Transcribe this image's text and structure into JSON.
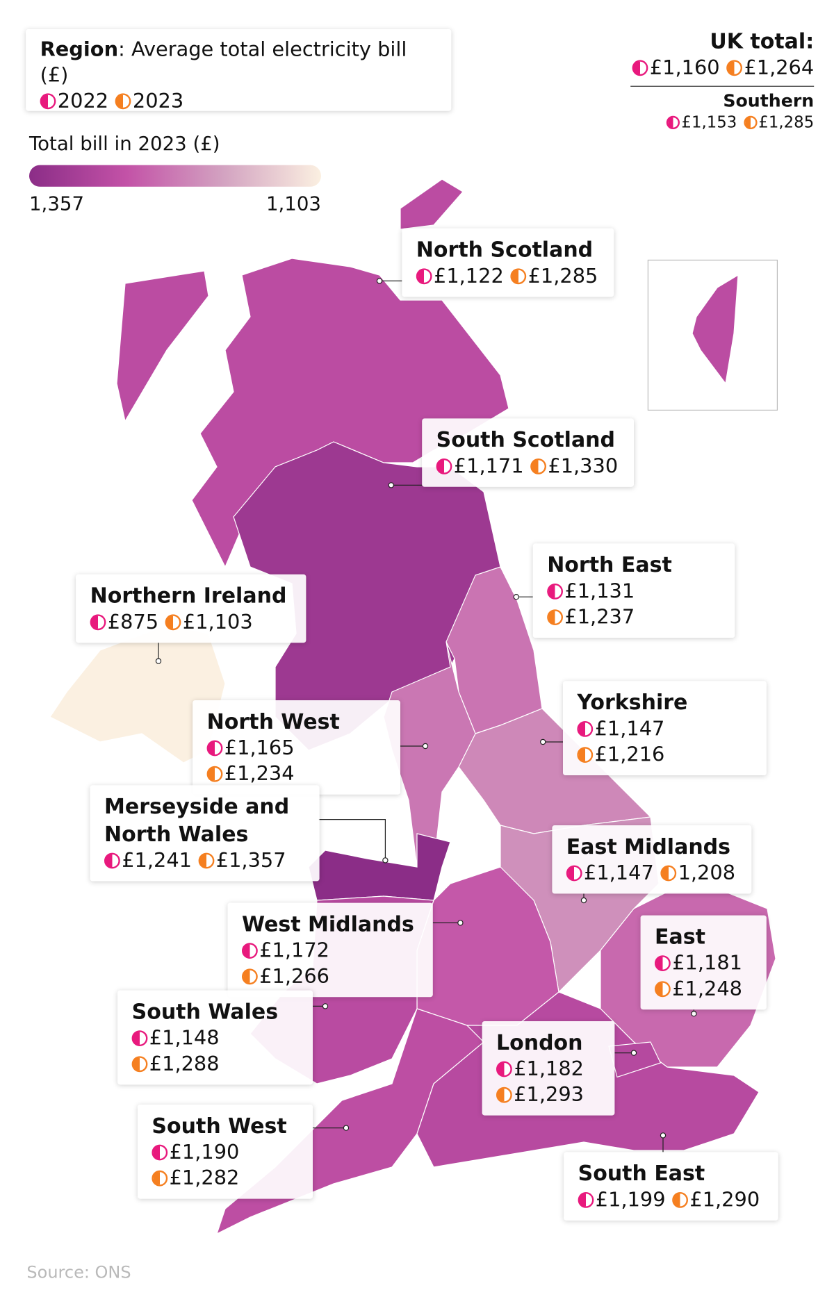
{
  "legend": {
    "title_bold": "Region",
    "title_rest": ": Average total electricity bill (£)",
    "series": [
      {
        "name": "2022",
        "color": "#e8197d"
      },
      {
        "name": "2023",
        "color": "#f57f20"
      }
    ]
  },
  "color_scale": {
    "title": "Total bill in 2023 (£)",
    "colors": [
      "#8b2d87",
      "#c352a7",
      "#d3a3c1",
      "#fbf0e1"
    ],
    "range": [
      {
        "value": 1357,
        "label": "1,357"
      },
      {
        "value": 1103,
        "label": "1,103"
      }
    ]
  },
  "uk_total": {
    "title": "UK total:",
    "bill_2022": {
      "value": 1160,
      "label": "£1,160"
    },
    "bill_2023": {
      "value": 1264,
      "label": "£1,264"
    }
  },
  "southern": {
    "title": "Southern",
    "bill_2022": {
      "value": 1153,
      "label": "£1,153"
    },
    "bill_2023": {
      "value": 1285,
      "label": "£1,285"
    }
  },
  "regions": [
    {
      "name": "North Scotland",
      "bill_2022": {
        "value": 1122,
        "label": "£1,122"
      },
      "bill_2023": {
        "value": 1285,
        "label": "£1,285"
      }
    },
    {
      "name": "South Scotland",
      "bill_2022": {
        "value": 1171,
        "label": "£1,171"
      },
      "bill_2023": {
        "value": 1330,
        "label": "£1,330"
      }
    },
    {
      "name": "North East",
      "bill_2022": {
        "value": 1131,
        "label": "£1,131"
      },
      "bill_2023": {
        "value": 1237,
        "label": "£1,237"
      }
    },
    {
      "name": "Northern Ireland",
      "bill_2022": {
        "value": 875,
        "label": "£875"
      },
      "bill_2023": {
        "value": 1103,
        "label": "£1,103"
      }
    },
    {
      "name": "Yorkshire",
      "bill_2022": {
        "value": 1147,
        "label": "£1,147"
      },
      "bill_2023": {
        "value": 1216,
        "label": "£1,216"
      }
    },
    {
      "name": "North West",
      "bill_2022": {
        "value": 1165,
        "label": "£1,165"
      },
      "bill_2023": {
        "value": 1234,
        "label": "£1,234"
      }
    },
    {
      "name": "Merseyside and North Wales",
      "bill_2022": {
        "value": 1241,
        "label": "£1,241"
      },
      "bill_2023": {
        "value": 1357,
        "label": "£1,357"
      }
    },
    {
      "name": "East Midlands",
      "bill_2022": {
        "value": 1147,
        "label": "£1,147"
      },
      "bill_2023": {
        "value": 1208,
        "label": "1,208"
      }
    },
    {
      "name": "West Midlands",
      "bill_2022": {
        "value": 1172,
        "label": "£1,172"
      },
      "bill_2023": {
        "value": 1266,
        "label": "£1,266"
      }
    },
    {
      "name": "East",
      "bill_2022": {
        "value": 1181,
        "label": "£1,181"
      },
      "bill_2023": {
        "value": 1248,
        "label": "£1,248"
      }
    },
    {
      "name": "South Wales",
      "bill_2022": {
        "value": 1148,
        "label": "£1,148"
      },
      "bill_2023": {
        "value": 1288,
        "label": "£1,288"
      }
    },
    {
      "name": "London",
      "bill_2022": {
        "value": 1182,
        "label": "£1,182"
      },
      "bill_2023": {
        "value": 1293,
        "label": "£1,293"
      }
    },
    {
      "name": "South West",
      "bill_2022": {
        "value": 1190,
        "label": "£1,190"
      },
      "bill_2023": {
        "value": 1282,
        "label": "£1,282"
      }
    },
    {
      "name": "South East",
      "bill_2022": {
        "value": 1199,
        "label": "£1,199"
      },
      "bill_2023": {
        "value": 1290,
        "label": "£1,290"
      }
    }
  ],
  "source": "Source: ONS"
}
